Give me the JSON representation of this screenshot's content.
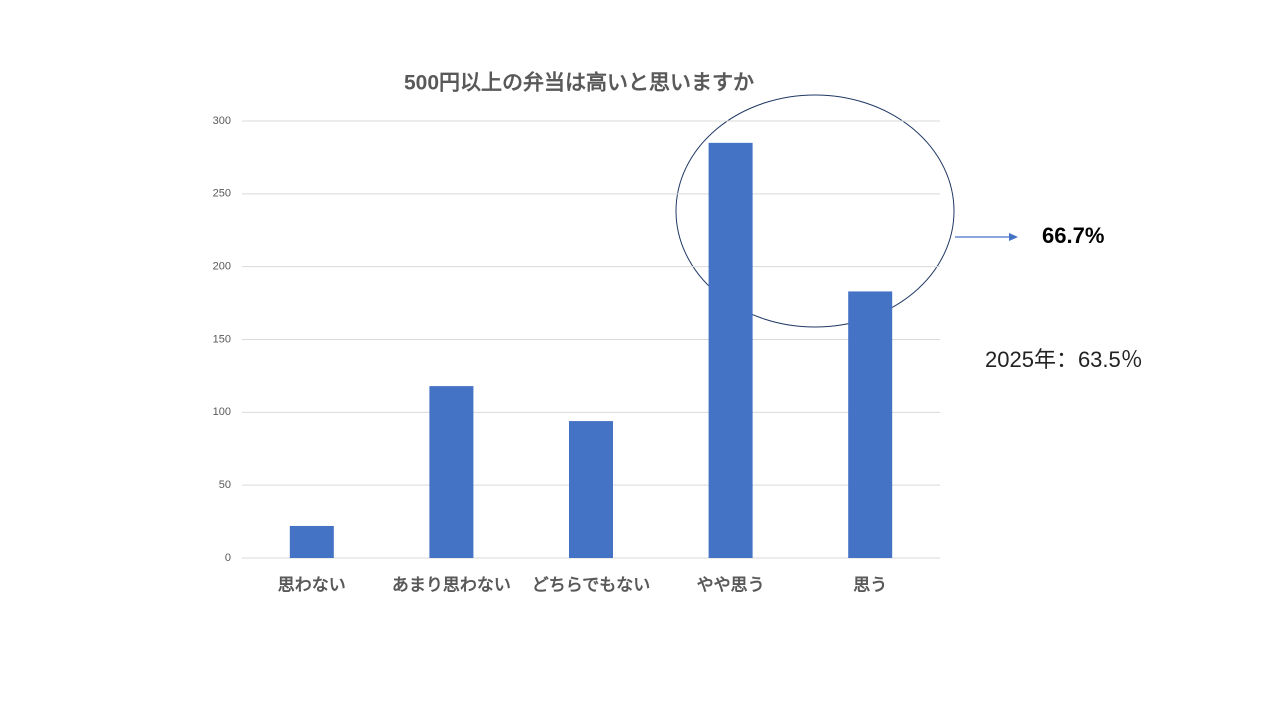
{
  "chart_data": {
    "type": "bar",
    "title": "500円以上の弁当は高いと思いますか",
    "categories": [
      "思わない",
      "あまり思わない",
      "どちらでもない",
      "やや思う",
      "思う"
    ],
    "values": [
      22,
      118,
      94,
      285,
      183
    ],
    "color": "#4472c4",
    "ylim": [
      0,
      300
    ],
    "yticks": [
      0,
      50,
      100,
      150,
      200,
      250,
      300
    ],
    "grid": true,
    "annotations": [
      "66.7%",
      "2025年：63.5％"
    ]
  }
}
